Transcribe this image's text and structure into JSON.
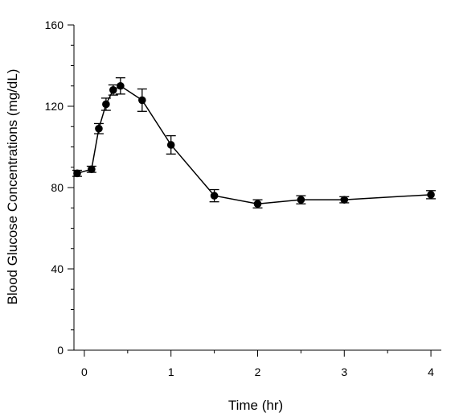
{
  "chart_data": {
    "type": "line",
    "xlabel": "Time (hr)",
    "ylabel": "Blood Glucose Concentrations (mg/dL)",
    "xlim": [
      -0.12,
      4.12
    ],
    "ylim": [
      0,
      160
    ],
    "x_ticks": [
      0,
      1,
      2,
      3,
      4
    ],
    "y_ticks": [
      0,
      40,
      80,
      120,
      160
    ],
    "x_tick_labels": [
      "0",
      "1",
      "2",
      "3",
      "4"
    ],
    "y_tick_labels": [
      "0",
      "40",
      "80",
      "120",
      "160"
    ],
    "grid": false,
    "legend": "none",
    "series": [
      {
        "color": "#000000",
        "marker": "circle",
        "x": [
          -0.083,
          0.083,
          0.167,
          0.25,
          0.333,
          0.417,
          0.667,
          1,
          1.5,
          2,
          2.5,
          3,
          4
        ],
        "values": [
          87,
          89,
          109,
          121,
          128,
          130,
          123,
          101,
          76,
          72,
          74,
          74,
          76.5
        ],
        "error": [
          1.5,
          1.5,
          2.5,
          3,
          2.5,
          4,
          5.5,
          4.5,
          3,
          2,
          2,
          1.5,
          2
        ]
      }
    ]
  }
}
